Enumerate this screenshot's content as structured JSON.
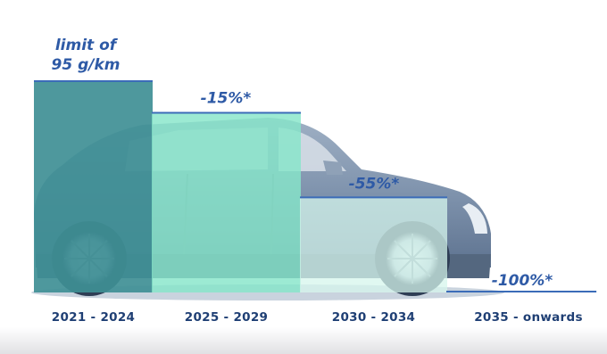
{
  "chart_data": {
    "type": "bar",
    "title": "",
    "xlabel": "",
    "ylabel": "",
    "categories": [
      "2021 - 2024",
      "2025 - 2029",
      "2030 - 2034",
      "2035 - onwards"
    ],
    "values": [
      95,
      80.75,
      42.75,
      0
    ],
    "bar_labels": [
      "limit of 95 g/km",
      "-15%*",
      "-55%*",
      "-100%*"
    ],
    "reduction_percent": [
      0,
      15,
      55,
      100
    ],
    "unit": "g/km",
    "ylim": [
      0,
      110
    ],
    "grid": false,
    "legend": "none",
    "colors": {
      "bar_1": "#3f8f95",
      "bar_2": "#86e5c9",
      "bar_3": "#d6f6ec",
      "line": "#3b6cb8",
      "label": "#2e5aa6",
      "tick": "#1f3f74"
    },
    "background_image": "car-silhouette"
  }
}
